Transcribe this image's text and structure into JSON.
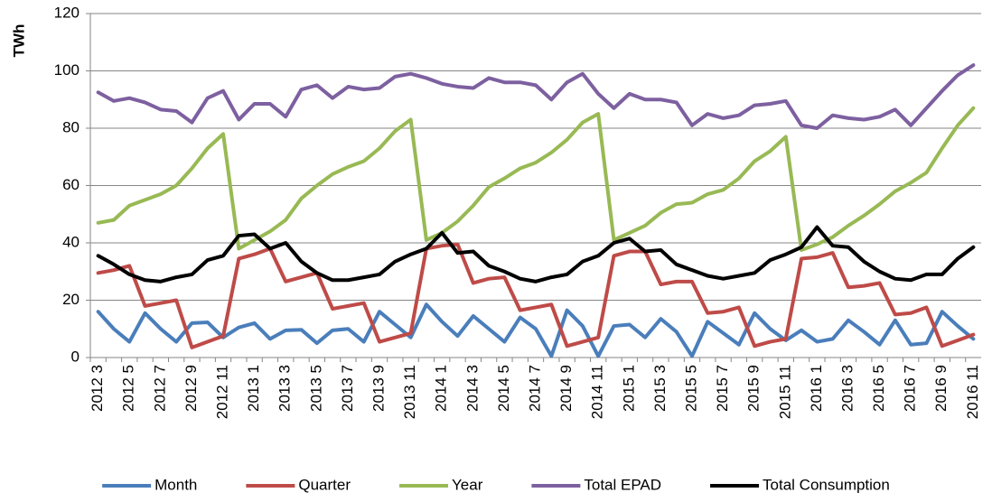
{
  "chart_data": {
    "type": "line",
    "y_label": "TWh",
    "categories": [
      "2012 3",
      null,
      "2012 5",
      null,
      "2012 7",
      null,
      "2012 9",
      null,
      "2012 11",
      null,
      "2013 1",
      null,
      "2013 3",
      null,
      "2013 5",
      null,
      "2013 7",
      null,
      "2013 9",
      null,
      "2013 11",
      null,
      "2014 1",
      null,
      "2014 3",
      null,
      "2014 5",
      null,
      "2014 7",
      null,
      "2014 9",
      null,
      "2014 11",
      null,
      "2015 1",
      null,
      "2015 3",
      null,
      "2015 5",
      null,
      "2015 7",
      null,
      "2015 9",
      null,
      "2015 11",
      null,
      "2016 1",
      null,
      "2016 3",
      null,
      "2016 5",
      null,
      "2016 7",
      null,
      "2016 9",
      null,
      "2016 11"
    ],
    "series": [
      {
        "name": "Month",
        "color": "#4a7ebb",
        "values": [
          16,
          10,
          5.5,
          15.5,
          10,
          5.5,
          12,
          12.3,
          7,
          10.5,
          12,
          6.5,
          9.5,
          9.7,
          5,
          9.5,
          10,
          5.5,
          16,
          11.5,
          7,
          18.5,
          12.5,
          7.5,
          14.5,
          10,
          5.5,
          14,
          10,
          0.5,
          16.5,
          11,
          0.5,
          11,
          11.5,
          7,
          13.5,
          9,
          0.5,
          12.5,
          8.5,
          4.5,
          15.5,
          10,
          6,
          9.5,
          5.5,
          6.5,
          13,
          9,
          4.5,
          13,
          4.5,
          5,
          16,
          11,
          6.5
        ]
      },
      {
        "name": "Quarter",
        "color": "#be4b48",
        "values": [
          29.5,
          30.5,
          32,
          18,
          19,
          20,
          3.5,
          5.5,
          7.5,
          34.5,
          36,
          38,
          26.5,
          28,
          29.5,
          17,
          18,
          19,
          5.5,
          7,
          8.5,
          38,
          39,
          39.5,
          26,
          27.5,
          28,
          16.5,
          17.5,
          18.5,
          4,
          5.5,
          7,
          35.5,
          37,
          37,
          25.5,
          26.5,
          26.5,
          15.5,
          16,
          17.5,
          4,
          5.5,
          6.5,
          34.5,
          35,
          36.5,
          24.5,
          25,
          26,
          15,
          15.5,
          17.5,
          4,
          6,
          8
        ]
      },
      {
        "name": "Year",
        "color": "#98b954",
        "values": [
          47,
          48,
          53,
          55,
          57,
          60,
          66,
          73,
          78,
          38,
          41,
          44,
          48,
          55.5,
          60,
          64,
          66.5,
          68.5,
          73,
          79,
          83,
          41,
          43.5,
          47.5,
          53,
          59.5,
          62.5,
          66,
          68,
          71.5,
          76,
          82,
          85,
          41,
          43.5,
          46,
          50.5,
          53.5,
          54,
          57,
          58.5,
          62.5,
          68.5,
          72,
          77,
          37.5,
          39.5,
          42,
          46,
          49.5,
          53.5,
          58,
          61,
          64.5,
          73,
          81,
          87
        ]
      },
      {
        "name": "Total EPAD",
        "color": "#7d60a0",
        "values": [
          92.5,
          89.5,
          90.5,
          89,
          86.5,
          86,
          82,
          90.5,
          93,
          83,
          88.5,
          88.5,
          84,
          93.5,
          95,
          90.5,
          94.5,
          93.5,
          94,
          98,
          99,
          97.5,
          95.5,
          94.5,
          94,
          97.5,
          96,
          96,
          95,
          90,
          96,
          99,
          92,
          87,
          92,
          90,
          90,
          89,
          81,
          85,
          83.5,
          84.5,
          88,
          88.5,
          89.5,
          81,
          80,
          84.5,
          83.5,
          83,
          84,
          86.5,
          81,
          87,
          93,
          98.5,
          102
        ]
      },
      {
        "name": "Total Consumption",
        "color": "#000000",
        "values": [
          35.5,
          32.5,
          29,
          27,
          26.5,
          28,
          29,
          34,
          35.5,
          42.5,
          43,
          38,
          40,
          33.5,
          29.5,
          27,
          27,
          28,
          29,
          33.5,
          36,
          38,
          43.5,
          36.5,
          37,
          32,
          30,
          27.5,
          26.5,
          28,
          29,
          33.5,
          35.5,
          40,
          41.5,
          37,
          37.5,
          32.5,
          30.5,
          28.5,
          27.5,
          28.5,
          29.5,
          34,
          36,
          38.5,
          45.5,
          39,
          38.5,
          33.5,
          30,
          27.5,
          27,
          29,
          29,
          34.5,
          38.5
        ]
      }
    ],
    "ylim": [
      0,
      120
    ],
    "yticks": [
      0,
      20,
      40,
      60,
      80,
      100,
      120
    ],
    "grid": true,
    "legend": "bottom"
  }
}
